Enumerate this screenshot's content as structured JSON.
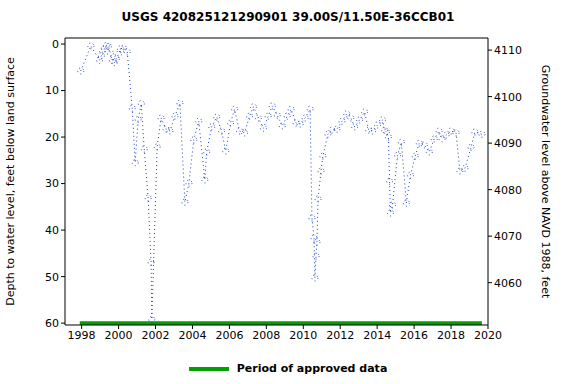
{
  "chart_data": {
    "type": "line",
    "title": "USGS 420825121290901 39.00S/11.50E-36CCB01",
    "y_label": "Depth to water level, feet below land surface",
    "y2_label": "Groundwater level above NAVD 1988, feet",
    "marker": "circle",
    "line_style": "dotted",
    "color": "#1f3fbf",
    "x": [
      1997.95,
      1998.5,
      1998.97,
      1999.07,
      1999.13,
      1999.24,
      1999.34,
      1999.45,
      1999.56,
      1999.67,
      1999.77,
      1999.88,
      1999.99,
      2000.1,
      2000.26,
      2000.47,
      2000.74,
      2000.9,
      2001.06,
      2001.23,
      2001.39,
      2001.6,
      2001.76,
      2001.8,
      2002.09,
      2002.3,
      2002.57,
      2002.78,
      2003.05,
      2003.32,
      2003.59,
      2003.81,
      2004.07,
      2004.34,
      2004.67,
      2004.77,
      2005.04,
      2005.31,
      2005.58,
      2005.8,
      2006.06,
      2006.28,
      2006.55,
      2006.82,
      2007.09,
      2007.3,
      2007.57,
      2007.84,
      2008.1,
      2008.32,
      2008.59,
      2008.86,
      2009.13,
      2009.34,
      2009.61,
      2009.83,
      2010.1,
      2010.37,
      2010.47,
      2010.58,
      2010.63,
      2010.69,
      2010.74,
      2010.8,
      2010.96,
      2011.06,
      2011.33,
      2011.55,
      2011.82,
      2012.09,
      2012.35,
      2012.57,
      2012.78,
      2013.05,
      2013.32,
      2013.54,
      2013.75,
      2014.02,
      2014.29,
      2014.4,
      2014.5,
      2014.61,
      2014.67,
      2014.72,
      2014.83,
      2015.1,
      2015.31,
      2015.58,
      2015.8,
      2016.06,
      2016.28,
      2016.55,
      2016.82,
      2017.09,
      2017.35,
      2017.51,
      2017.73,
      2018.0,
      2018.27,
      2018.48,
      2018.75,
      2019.08,
      2019.29,
      2019.67
    ],
    "values": [
      5.8,
      0.4,
      3.5,
      2.5,
      1.5,
      1.0,
      0.3,
      0.5,
      2.0,
      3.5,
      4.0,
      3.2,
      2.2,
      1.0,
      0.9,
      1.7,
      13.8,
      25.5,
      16.2,
      12.8,
      22.6,
      33.1,
      46.9,
      59.2,
      22.1,
      15.9,
      18.3,
      18.7,
      15.5,
      12.7,
      34.0,
      29.9,
      20.6,
      16.6,
      29.2,
      23.2,
      17.8,
      15.7,
      18.7,
      23.0,
      17.0,
      14.0,
      18.7,
      19.1,
      15.5,
      13.5,
      15.9,
      18.1,
      15.5,
      13.3,
      15.3,
      17.6,
      15.5,
      14.0,
      17.0,
      17.2,
      15.9,
      14.0,
      37.4,
      41.7,
      50.3,
      45.6,
      42.6,
      33.3,
      27.3,
      24.1,
      19.4,
      18.5,
      18.3,
      16.6,
      15.0,
      15.9,
      17.8,
      16.3,
      14.6,
      18.5,
      18.7,
      17.4,
      16.3,
      18.5,
      18.9,
      20.0,
      29.5,
      36.3,
      34.6,
      23.9,
      21.1,
      34.2,
      28.2,
      24.1,
      21.3,
      21.7,
      23.2,
      20.4,
      18.7,
      20.4,
      19.6,
      18.7,
      19.1,
      27.3,
      26.7,
      22.2,
      18.9,
      19.4
    ],
    "xlim": [
      1997.1,
      2020
    ],
    "xticks": [
      1998,
      2000,
      2002,
      2004,
      2006,
      2008,
      2010,
      2012,
      2014,
      2016,
      2018,
      2020
    ],
    "ylim": [
      -1.3,
      60.4
    ],
    "yticks": [
      0,
      10,
      20,
      30,
      40,
      50,
      60
    ],
    "y2lim": [
      4050.9,
      4112.6
    ],
    "y2ticks": [
      4060,
      4070,
      4080,
      4090,
      4100,
      4110
    ],
    "approved_period": {
      "name": "Period of approved data",
      "color": "#00a000",
      "x": [
        1997.9,
        2019.67
      ],
      "depth": 60
    }
  }
}
